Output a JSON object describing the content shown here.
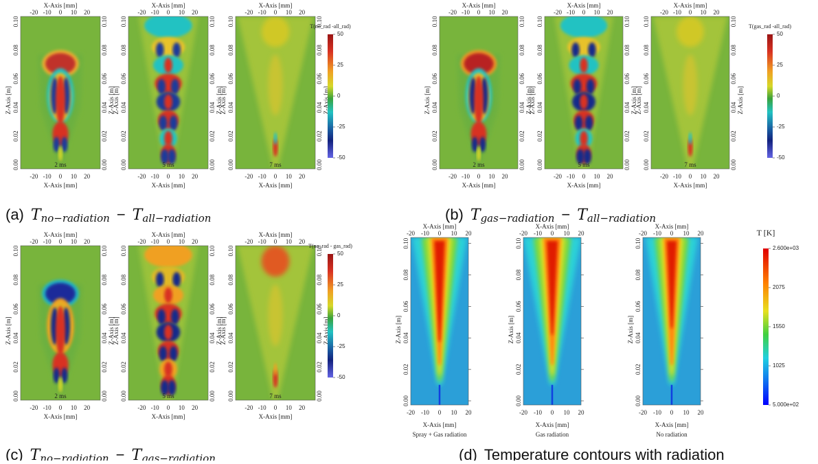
{
  "panels": [
    {
      "label": "(a)",
      "caption": {
        "symbol": "T",
        "minuend": "no−radiation",
        "operator": "−",
        "subtrahend": "all−radiation"
      },
      "x_axis_label": "X-Axis [mm]",
      "z_axis_label": "Z-Axis [m]",
      "x_ticks": [
        "-20",
        "-10",
        "0",
        "10",
        "20"
      ],
      "z_ticks": [
        "0.00",
        "0.02",
        "0.04",
        "0.06",
        "0.08",
        "0.10"
      ],
      "plots": [
        {
          "time": "2 ms"
        },
        {
          "time": "5 ms"
        },
        {
          "time": "7 ms"
        }
      ],
      "colorbar": {
        "title": "T(no_rad -all_rad)",
        "ticks": [
          "50",
          "25",
          "0",
          "-25",
          "-50"
        ]
      }
    },
    {
      "label": "(b)",
      "caption": {
        "symbol": "T",
        "minuend": "gas−radiation",
        "operator": "−",
        "subtrahend": "all−radiation"
      },
      "x_axis_label": "X-Axis [mm]",
      "z_axis_label": "Z-Axis [m]",
      "x_ticks": [
        "-20",
        "-10",
        "0",
        "10",
        "20"
      ],
      "z_ticks": [
        "0.00",
        "0.02",
        "0.04",
        "0.06",
        "0.08",
        "0.10"
      ],
      "plots": [
        {
          "time": "2 ms"
        },
        {
          "time": "5 ms"
        },
        {
          "time": "7 ms"
        }
      ],
      "colorbar": {
        "title": "T(gas_rad -all_rad)",
        "ticks": [
          "50",
          "25",
          "0",
          "-25",
          "-50"
        ]
      }
    },
    {
      "label": "(c)",
      "caption": {
        "symbol": "T",
        "minuend": "no−radiation",
        "operator": "−",
        "subtrahend": "gas−radiation"
      },
      "x_axis_label": "X-Axis [mm]",
      "z_axis_label": "Z-Axis [m]",
      "x_ticks": [
        "-20",
        "-10",
        "0",
        "10",
        "20"
      ],
      "z_ticks": [
        "0.00",
        "0.02",
        "0.04",
        "0.06",
        "0.08",
        "0.10"
      ],
      "plots": [
        {
          "time": "2 ms"
        },
        {
          "time": "5 ms"
        },
        {
          "time": "7 ms"
        }
      ],
      "colorbar": {
        "title": "T(no_rad - gas_rad)",
        "ticks": [
          "50",
          "25",
          "0",
          "-25",
          "-50"
        ]
      }
    },
    {
      "label": "(d)",
      "caption": {
        "text": "Temperature contours with radiation"
      },
      "x_axis_label": "X-Axis [mm]",
      "z_axis_label": "Z-Axis [m]",
      "x_ticks": [
        "-20",
        "-10",
        "0",
        "10",
        "20"
      ],
      "z_ticks": [
        "0.00",
        "0.02",
        "0.04",
        "0.06",
        "0.08",
        "0.10"
      ],
      "plots": [
        {
          "name": "Spray + Gas radiation"
        },
        {
          "name": "Gas radiation"
        },
        {
          "name": "No radiation"
        }
      ],
      "colorbar": {
        "title": "T [K]",
        "ticks": [
          "2.600e+03",
          "2075",
          "1550",
          "1025",
          "5.000e+02"
        ]
      }
    }
  ]
}
